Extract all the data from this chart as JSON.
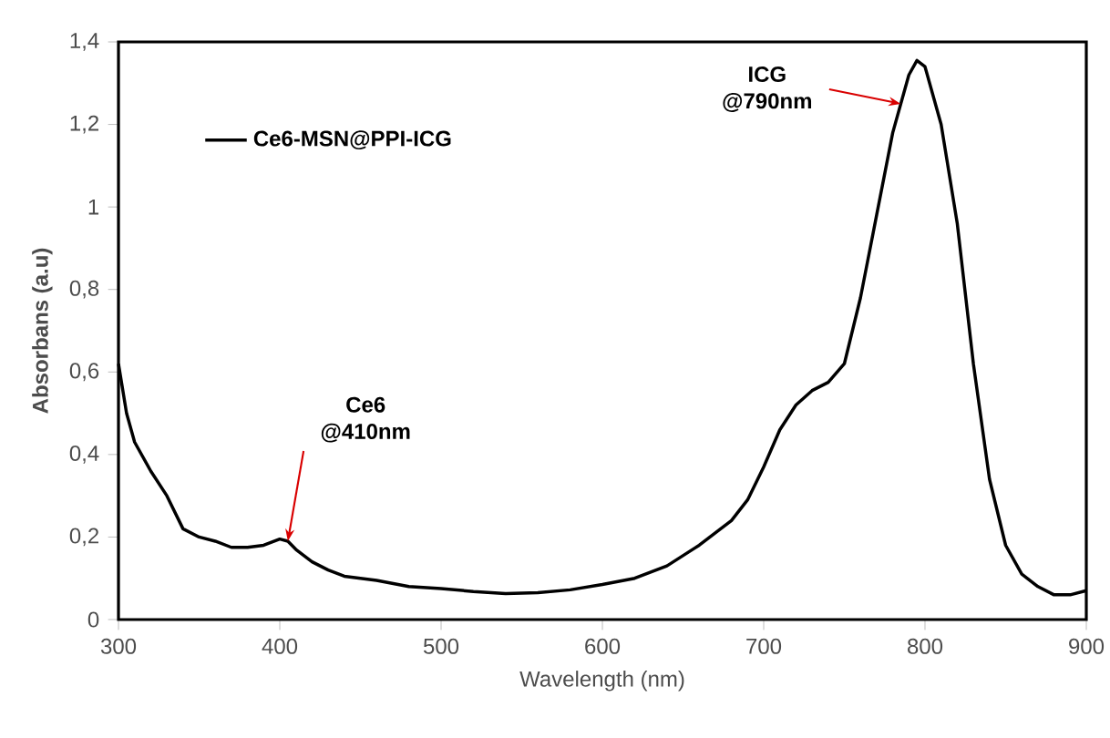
{
  "chart_data": {
    "type": "line",
    "xlabel": "Wavelength (nm)",
    "ylabel": "Absorbans (a.u)",
    "x": [
      300,
      305,
      310,
      320,
      330,
      340,
      350,
      360,
      370,
      380,
      390,
      400,
      405,
      410,
      420,
      430,
      440,
      450,
      460,
      480,
      500,
      520,
      540,
      560,
      580,
      600,
      620,
      640,
      660,
      680,
      690,
      700,
      710,
      720,
      730,
      740,
      750,
      760,
      770,
      780,
      790,
      795,
      800,
      810,
      820,
      830,
      840,
      850,
      860,
      870,
      880,
      890,
      900
    ],
    "series": [
      {
        "name": "Ce6-MSN@PPI-ICG",
        "color": "#000000",
        "values": [
          0.62,
          0.5,
          0.43,
          0.36,
          0.3,
          0.22,
          0.2,
          0.19,
          0.175,
          0.175,
          0.18,
          0.195,
          0.19,
          0.17,
          0.14,
          0.12,
          0.105,
          0.1,
          0.095,
          0.08,
          0.075,
          0.068,
          0.063,
          0.065,
          0.072,
          0.085,
          0.1,
          0.13,
          0.18,
          0.24,
          0.29,
          0.37,
          0.46,
          0.52,
          0.555,
          0.575,
          0.62,
          0.78,
          0.98,
          1.18,
          1.32,
          1.355,
          1.34,
          1.2,
          0.96,
          0.62,
          0.34,
          0.18,
          0.11,
          0.08,
          0.06,
          0.06,
          0.07
        ]
      }
    ],
    "xlim": [
      300,
      900
    ],
    "xticks": [
      300,
      400,
      500,
      600,
      700,
      800,
      900
    ],
    "ylim": [
      0,
      1.4
    ],
    "yticks": [
      0,
      {
        "value": 0.2,
        "label": "0,2"
      },
      {
        "value": 0.4,
        "label": "0,4"
      },
      {
        "value": 0.6,
        "label": "0,6"
      },
      {
        "value": 0.8,
        "label": "0,8"
      },
      1,
      {
        "value": 1.2,
        "label": "1,2"
      },
      {
        "value": 1.4,
        "label": "1,4"
      }
    ],
    "grid": false,
    "legend": "top left",
    "marker": "none",
    "line_style": "solid",
    "annotations": [
      {
        "text": "Ce6 @410nm",
        "x": 405,
        "y": 0.19
      },
      {
        "text": "ICG @790nm",
        "x": 785,
        "y": 1.25
      }
    ]
  }
}
